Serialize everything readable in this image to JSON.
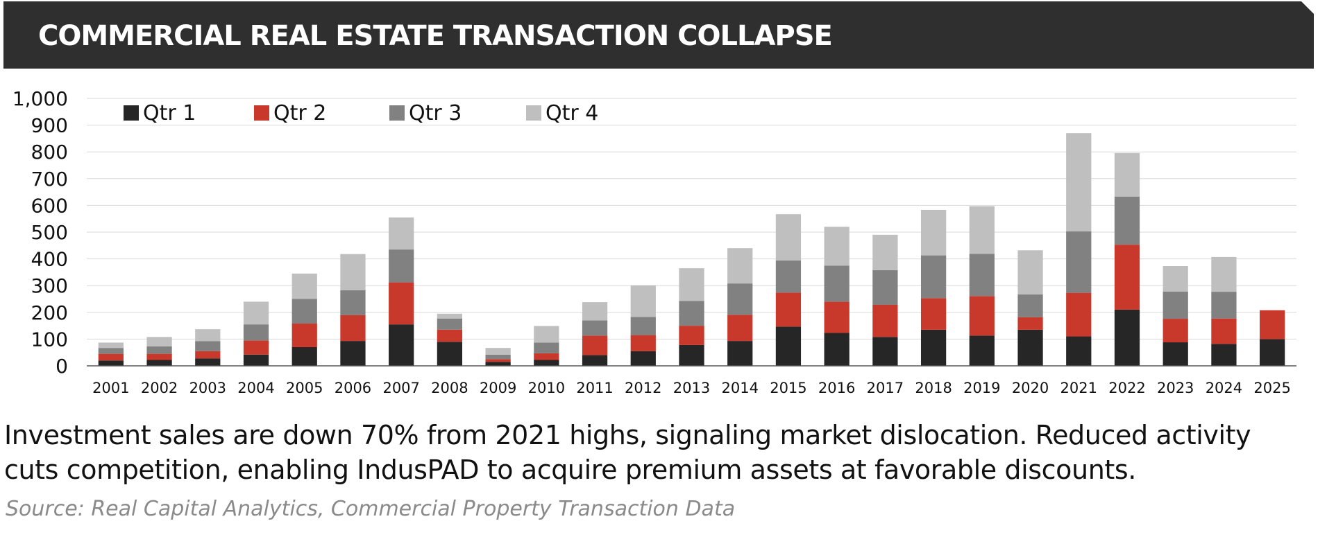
{
  "header": {
    "title": "COMMERCIAL REAL ESTATE TRANSACTION COLLAPSE",
    "background_color": "#2f2f2f"
  },
  "caption": {
    "line1": "Investment sales are down 70% from 2021 highs, signaling market dislocation. Reduced activity",
    "line2": "cuts competition, enabling IndusPAD to acquire premium assets at favorable discounts."
  },
  "source": "Source: Real Capital Analytics, Commercial Property Transaction Data",
  "chart_data": {
    "type": "bar",
    "stacked": true,
    "categories": [
      "2001",
      "2002",
      "2003",
      "2004",
      "2005",
      "2006",
      "2007",
      "2008",
      "2009",
      "2010",
      "2011",
      "2012",
      "2013",
      "2014",
      "2015",
      "2016",
      "2017",
      "2018",
      "2019",
      "2020",
      "2021",
      "2022",
      "2023",
      "2024",
      "2025"
    ],
    "series": [
      {
        "name": "Qtr 1",
        "color": "#262626",
        "values": [
          20,
          22,
          28,
          42,
          70,
          93,
          155,
          90,
          15,
          22,
          40,
          55,
          78,
          93,
          147,
          123,
          108,
          135,
          113,
          135,
          110,
          210,
          88,
          82,
          100
        ]
      },
      {
        "name": "Qtr 2",
        "color": "#c9392b",
        "values": [
          25,
          23,
          27,
          53,
          88,
          97,
          157,
          45,
          10,
          25,
          73,
          60,
          72,
          98,
          127,
          117,
          120,
          118,
          148,
          47,
          163,
          243,
          88,
          95,
          108
        ]
      },
      {
        "name": "Qtr 3",
        "color": "#818181",
        "values": [
          22,
          28,
          37,
          60,
          92,
          93,
          123,
          42,
          17,
          40,
          57,
          68,
          93,
          117,
          120,
          135,
          130,
          160,
          158,
          85,
          230,
          180,
          102,
          100,
          0
        ]
      },
      {
        "name": "Qtr 4",
        "color": "#bfbfbf",
        "values": [
          20,
          35,
          45,
          85,
          95,
          135,
          120,
          18,
          25,
          62,
          68,
          118,
          122,
          132,
          173,
          145,
          132,
          170,
          178,
          165,
          367,
          163,
          95,
          130,
          0
        ]
      }
    ],
    "title": "",
    "xlabel": "",
    "ylabel": "",
    "ylim": [
      0,
      1000
    ],
    "yticks": [
      0,
      100,
      200,
      300,
      400,
      500,
      600,
      700,
      800,
      900,
      1000
    ],
    "ytick_labels": [
      "0",
      "100",
      "200",
      "300",
      "400",
      "500",
      "600",
      "700",
      "800",
      "900",
      "1,000"
    ],
    "grid": true,
    "legend_position": "top-left"
  }
}
